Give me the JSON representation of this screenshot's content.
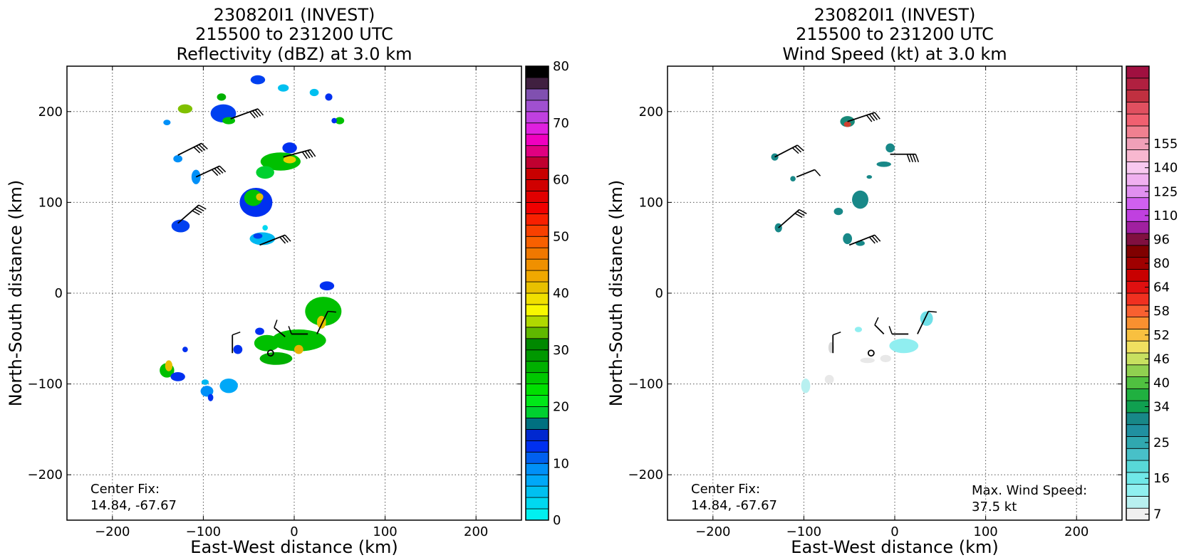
{
  "chart_data": [
    {
      "type": "heatmap",
      "title_lines": [
        "230820I1 (INVEST)",
        "215500 to 231200 UTC",
        "Reflectivity (dBZ) at 3.0 km"
      ],
      "xlabel": "East-West distance (km)",
      "ylabel": "North-South distance (km)",
      "xlim": [
        -250,
        250
      ],
      "ylim": [
        -250,
        250
      ],
      "xticks": [
        -200,
        -100,
        0,
        100,
        200
      ],
      "yticks": [
        -200,
        -100,
        0,
        100,
        200
      ],
      "xtick_labels": [
        "−200",
        "−100",
        "0",
        "100",
        "200"
      ],
      "ytick_labels": [
        "−200",
        "−100",
        "0",
        "100",
        "200"
      ],
      "grid": true,
      "annotation_lines": [
        "Center Fix:",
        "14.84, -67.67"
      ],
      "center_fix": {
        "x": -26,
        "y": -66
      },
      "colorbar": {
        "min": 0,
        "max": 80,
        "tick_values": [
          0,
          10,
          20,
          30,
          40,
          50,
          60,
          70,
          80
        ],
        "tick_labels": [
          "0",
          "10",
          "20",
          "30",
          "40",
          "50",
          "60",
          "70",
          "80"
        ],
        "colors": [
          "#00f0f0",
          "#00d8f0",
          "#00c0f0",
          "#00a8f8",
          "#0090f8",
          "#0060f0",
          "#0030f0",
          "#0028d0",
          "#007080",
          "#00d030",
          "#00e818",
          "#00e000",
          "#00c800",
          "#00b000",
          "#009800",
          "#008800",
          "#60b800",
          "#b0d800",
          "#f8f800",
          "#f0e000",
          "#e8c000",
          "#f0a800",
          "#f09000",
          "#f07800",
          "#f86000",
          "#f84000",
          "#f82000",
          "#f00000",
          "#e00000",
          "#d00000",
          "#c80000",
          "#c00030",
          "#e00080",
          "#f000c0",
          "#e020e0",
          "#c040e0",
          "#a050d0",
          "#8050b0",
          "#402040",
          "#000000"
        ]
      },
      "echo_regions": [
        {
          "x": -40,
          "y": 235,
          "rx": 8,
          "ry": 5,
          "color": "#0040f0"
        },
        {
          "x": -12,
          "y": 226,
          "rx": 6,
          "ry": 4,
          "color": "#00c0f0"
        },
        {
          "x": 22,
          "y": 221,
          "rx": 5,
          "ry": 4,
          "color": "#00c0f0"
        },
        {
          "x": 38,
          "y": 216,
          "rx": 4,
          "ry": 4,
          "color": "#0030f0"
        },
        {
          "x": -80,
          "y": 216,
          "rx": 5,
          "ry": 4,
          "color": "#00b000"
        },
        {
          "x": -120,
          "y": 203,
          "rx": 8,
          "ry": 5,
          "color": "#80c000"
        },
        {
          "x": -78,
          "y": 198,
          "rx": 14,
          "ry": 10,
          "color": "#0040f0"
        },
        {
          "x": -72,
          "y": 190,
          "rx": 7,
          "ry": 4,
          "color": "#00c000"
        },
        {
          "x": -140,
          "y": 188,
          "rx": 4,
          "ry": 3,
          "color": "#0090f8"
        },
        {
          "x": 50,
          "y": 190,
          "rx": 5,
          "ry": 4,
          "color": "#00c000"
        },
        {
          "x": 44,
          "y": 190,
          "rx": 3,
          "ry": 3,
          "color": "#0030f0"
        },
        {
          "x": -128,
          "y": 148,
          "rx": 5,
          "ry": 4,
          "color": "#0090f8"
        },
        {
          "x": -5,
          "y": 160,
          "rx": 8,
          "ry": 6,
          "color": "#0030f0"
        },
        {
          "x": -15,
          "y": 145,
          "rx": 22,
          "ry": 10,
          "color": "#00c000"
        },
        {
          "x": -32,
          "y": 133,
          "rx": 10,
          "ry": 7,
          "color": "#00d030"
        },
        {
          "x": -5,
          "y": 147,
          "rx": 7,
          "ry": 4,
          "color": "#e8d000"
        },
        {
          "x": -108,
          "y": 128,
          "rx": 5,
          "ry": 8,
          "color": "#0090f8"
        },
        {
          "x": -42,
          "y": 100,
          "rx": 18,
          "ry": 16,
          "color": "#0030f0"
        },
        {
          "x": -45,
          "y": 105,
          "rx": 10,
          "ry": 9,
          "color": "#00c000"
        },
        {
          "x": -38,
          "y": 106,
          "rx": 4,
          "ry": 4,
          "color": "#e0c000"
        },
        {
          "x": -125,
          "y": 74,
          "rx": 10,
          "ry": 7,
          "color": "#0040f0"
        },
        {
          "x": -35,
          "y": 60,
          "rx": 14,
          "ry": 7,
          "color": "#00b8f0"
        },
        {
          "x": -40,
          "y": 63,
          "rx": 5,
          "ry": 3,
          "color": "#0040f0"
        },
        {
          "x": -32,
          "y": 72,
          "rx": 3,
          "ry": 3,
          "color": "#00d8f0"
        },
        {
          "x": 36,
          "y": 8,
          "rx": 8,
          "ry": 5,
          "color": "#0030f0"
        },
        {
          "x": 32,
          "y": -20,
          "rx": 20,
          "ry": 16,
          "color": "#00c000"
        },
        {
          "x": 30,
          "y": -32,
          "rx": 5,
          "ry": 7,
          "color": "#e8c000"
        },
        {
          "x": 5,
          "y": -52,
          "rx": 30,
          "ry": 12,
          "color": "#00c000"
        },
        {
          "x": -30,
          "y": -55,
          "rx": 14,
          "ry": 9,
          "color": "#00c000"
        },
        {
          "x": -20,
          "y": -72,
          "rx": 18,
          "ry": 7,
          "color": "#00b000"
        },
        {
          "x": 5,
          "y": -62,
          "rx": 5,
          "ry": 5,
          "color": "#e8b000"
        },
        {
          "x": -38,
          "y": -42,
          "rx": 5,
          "ry": 4,
          "color": "#0030f0"
        },
        {
          "x": -62,
          "y": -62,
          "rx": 5,
          "ry": 5,
          "color": "#0030f0"
        },
        {
          "x": -120,
          "y": -62,
          "rx": 3,
          "ry": 3,
          "color": "#0030f0"
        },
        {
          "x": -140,
          "y": -85,
          "rx": 8,
          "ry": 8,
          "color": "#00c000"
        },
        {
          "x": -138,
          "y": -80,
          "rx": 4,
          "ry": 6,
          "color": "#e8c000"
        },
        {
          "x": -128,
          "y": -92,
          "rx": 8,
          "ry": 5,
          "color": "#0030f0"
        },
        {
          "x": -98,
          "y": -98,
          "rx": 4,
          "ry": 3,
          "color": "#00b8f0"
        },
        {
          "x": -96,
          "y": -108,
          "rx": 7,
          "ry": 6,
          "color": "#0090f8"
        },
        {
          "x": -72,
          "y": -102,
          "rx": 10,
          "ry": 8,
          "color": "#00a8f8"
        },
        {
          "x": -92,
          "y": -115,
          "rx": 3,
          "ry": 4,
          "color": "#0030f0"
        }
      ],
      "wind_barbs": [
        {
          "x": -70,
          "y": 192,
          "dx": 30,
          "dy": 11,
          "flags": 4
        },
        {
          "x": -128,
          "y": 152,
          "dx": 26,
          "dy": 13,
          "flags": 4
        },
        {
          "x": -108,
          "y": 128,
          "dx": 26,
          "dy": 12,
          "flags": 4
        },
        {
          "x": -12,
          "y": 150,
          "dx": 30,
          "dy": 8,
          "flags": 4
        },
        {
          "x": -128,
          "y": 77,
          "dx": 23,
          "dy": 20,
          "flags": 4
        },
        {
          "x": -38,
          "y": 53,
          "dx": 28,
          "dy": 11,
          "flags": 3
        },
        {
          "x": -68,
          "y": -66,
          "dx": 0,
          "dy": 20,
          "flags": 1
        },
        {
          "x": -10,
          "y": -48,
          "dx": -12,
          "dy": 10,
          "flags": 1
        },
        {
          "x": 15,
          "y": -45,
          "dx": -18,
          "dy": 0,
          "flags": 1
        },
        {
          "x": 25,
          "y": -45,
          "dx": 12,
          "dy": 25,
          "flags": 1
        }
      ]
    },
    {
      "type": "heatmap",
      "title_lines": [
        "230820I1 (INVEST)",
        "215500 to 231200 UTC",
        "Wind Speed (kt) at 3.0 km"
      ],
      "xlabel": "East-West distance (km)",
      "ylabel": "North-South distance (km)",
      "xlim": [
        -250,
        250
      ],
      "ylim": [
        -250,
        250
      ],
      "xticks": [
        -200,
        -100,
        0,
        100,
        200
      ],
      "yticks": [
        -200,
        -100,
        0,
        100,
        200
      ],
      "xtick_labels": [
        "−200",
        "−100",
        "0",
        "100",
        "200"
      ],
      "ytick_labels": [
        "−200",
        "−100",
        "0",
        "100",
        "200"
      ],
      "grid": true,
      "annotation_lines": [
        "Center Fix:",
        "14.84, -67.67"
      ],
      "max_wind_lines": [
        "Max. Wind Speed:",
        "37.5 kt"
      ],
      "max_wind_kt": 37.5,
      "center_fix": {
        "x": -26,
        "y": -66
      },
      "colorbar": {
        "tick_labels": [
          "7",
          "16",
          "25",
          "34",
          "40",
          "46",
          "52",
          "58",
          "64",
          "80",
          "96",
          "110",
          "125",
          "140",
          "155"
        ],
        "tick_bins": [
          0,
          3,
          6,
          9,
          11,
          13,
          15,
          17,
          19,
          21,
          23,
          25,
          27,
          29,
          31
        ],
        "colors": [
          "#f0f0f0",
          "#b8f0f0",
          "#90f0f0",
          "#70e8e8",
          "#58d8d8",
          "#48c0c8",
          "#30a8b0",
          "#2090a0",
          "#188888",
          "#10a050",
          "#20b040",
          "#50c040",
          "#90d050",
          "#c8e060",
          "#f0e060",
          "#f8c040",
          "#f89030",
          "#f86030",
          "#f03020",
          "#e01010",
          "#c80000",
          "#a00000",
          "#800000",
          "#801040",
          "#a020a0",
          "#c040e0",
          "#d060f0",
          "#e090f0",
          "#f0b0f0",
          "#f8c8f0",
          "#f8b8d0",
          "#f0a0b8",
          "#f08090",
          "#f06070",
          "#e05060",
          "#c03040",
          "#b02040",
          "#a01040"
        ]
      },
      "wind_regions": [
        {
          "x": -52,
          "y": 189,
          "rx": 8,
          "ry": 6,
          "color": "#188878"
        },
        {
          "x": -52,
          "y": 186,
          "rx": 4,
          "ry": 3,
          "color": "#d04030"
        },
        {
          "x": -132,
          "y": 150,
          "rx": 4,
          "ry": 4,
          "color": "#188888"
        },
        {
          "x": -112,
          "y": 126,
          "rx": 3,
          "ry": 3,
          "color": "#188888"
        },
        {
          "x": -5,
          "y": 160,
          "rx": 5,
          "ry": 5,
          "color": "#188888"
        },
        {
          "x": -12,
          "y": 142,
          "rx": 8,
          "ry": 3,
          "color": "#188888"
        },
        {
          "x": -28,
          "y": 128,
          "rx": 3,
          "ry": 2,
          "color": "#188888"
        },
        {
          "x": -38,
          "y": 103,
          "rx": 9,
          "ry": 10,
          "color": "#188888"
        },
        {
          "x": -62,
          "y": 90,
          "rx": 5,
          "ry": 4,
          "color": "#188888"
        },
        {
          "x": -128,
          "y": 72,
          "rx": 4,
          "ry": 5,
          "color": "#188888"
        },
        {
          "x": -52,
          "y": 60,
          "rx": 5,
          "ry": 6,
          "color": "#188888"
        },
        {
          "x": -38,
          "y": 55,
          "rx": 5,
          "ry": 3,
          "color": "#188888"
        },
        {
          "x": 35,
          "y": -28,
          "rx": 7,
          "ry": 8,
          "color": "#70e0e8"
        },
        {
          "x": 10,
          "y": -58,
          "rx": 16,
          "ry": 8,
          "color": "#90eef0"
        },
        {
          "x": -40,
          "y": -40,
          "rx": 4,
          "ry": 3,
          "color": "#90eef0"
        },
        {
          "x": -70,
          "y": -60,
          "rx": 3,
          "ry": 6,
          "color": "#d8d8d8"
        },
        {
          "x": -30,
          "y": -74,
          "rx": 8,
          "ry": 3,
          "color": "#e8e8e8"
        },
        {
          "x": -10,
          "y": -72,
          "rx": 6,
          "ry": 4,
          "color": "#e8e8e8"
        },
        {
          "x": -72,
          "y": -95,
          "rx": 5,
          "ry": 5,
          "color": "#e8e8e8"
        },
        {
          "x": -98,
          "y": -102,
          "rx": 5,
          "ry": 8,
          "color": "#b8f0f0"
        }
      ],
      "wind_barbs": [
        {
          "x": -52,
          "y": 189,
          "dx": 30,
          "dy": 10,
          "flags": 4
        },
        {
          "x": -132,
          "y": 150,
          "dx": 25,
          "dy": 13,
          "flags": 3
        },
        {
          "x": -108,
          "y": 128,
          "dx": 20,
          "dy": 8,
          "flags": 1
        },
        {
          "x": -5,
          "y": 153,
          "dx": 28,
          "dy": 0,
          "flags": 4
        },
        {
          "x": -128,
          "y": 72,
          "dx": 23,
          "dy": 20,
          "flags": 3
        },
        {
          "x": -50,
          "y": 53,
          "dx": 28,
          "dy": 11,
          "flags": 3
        },
        {
          "x": -68,
          "y": -66,
          "dx": 0,
          "dy": 20,
          "flags": 1
        },
        {
          "x": -12,
          "y": -45,
          "dx": -10,
          "dy": 10,
          "flags": 1
        },
        {
          "x": 15,
          "y": -45,
          "dx": -18,
          "dy": 0,
          "flags": 1
        },
        {
          "x": 25,
          "y": -45,
          "dx": 12,
          "dy": 25,
          "flags": 1
        }
      ]
    }
  ]
}
